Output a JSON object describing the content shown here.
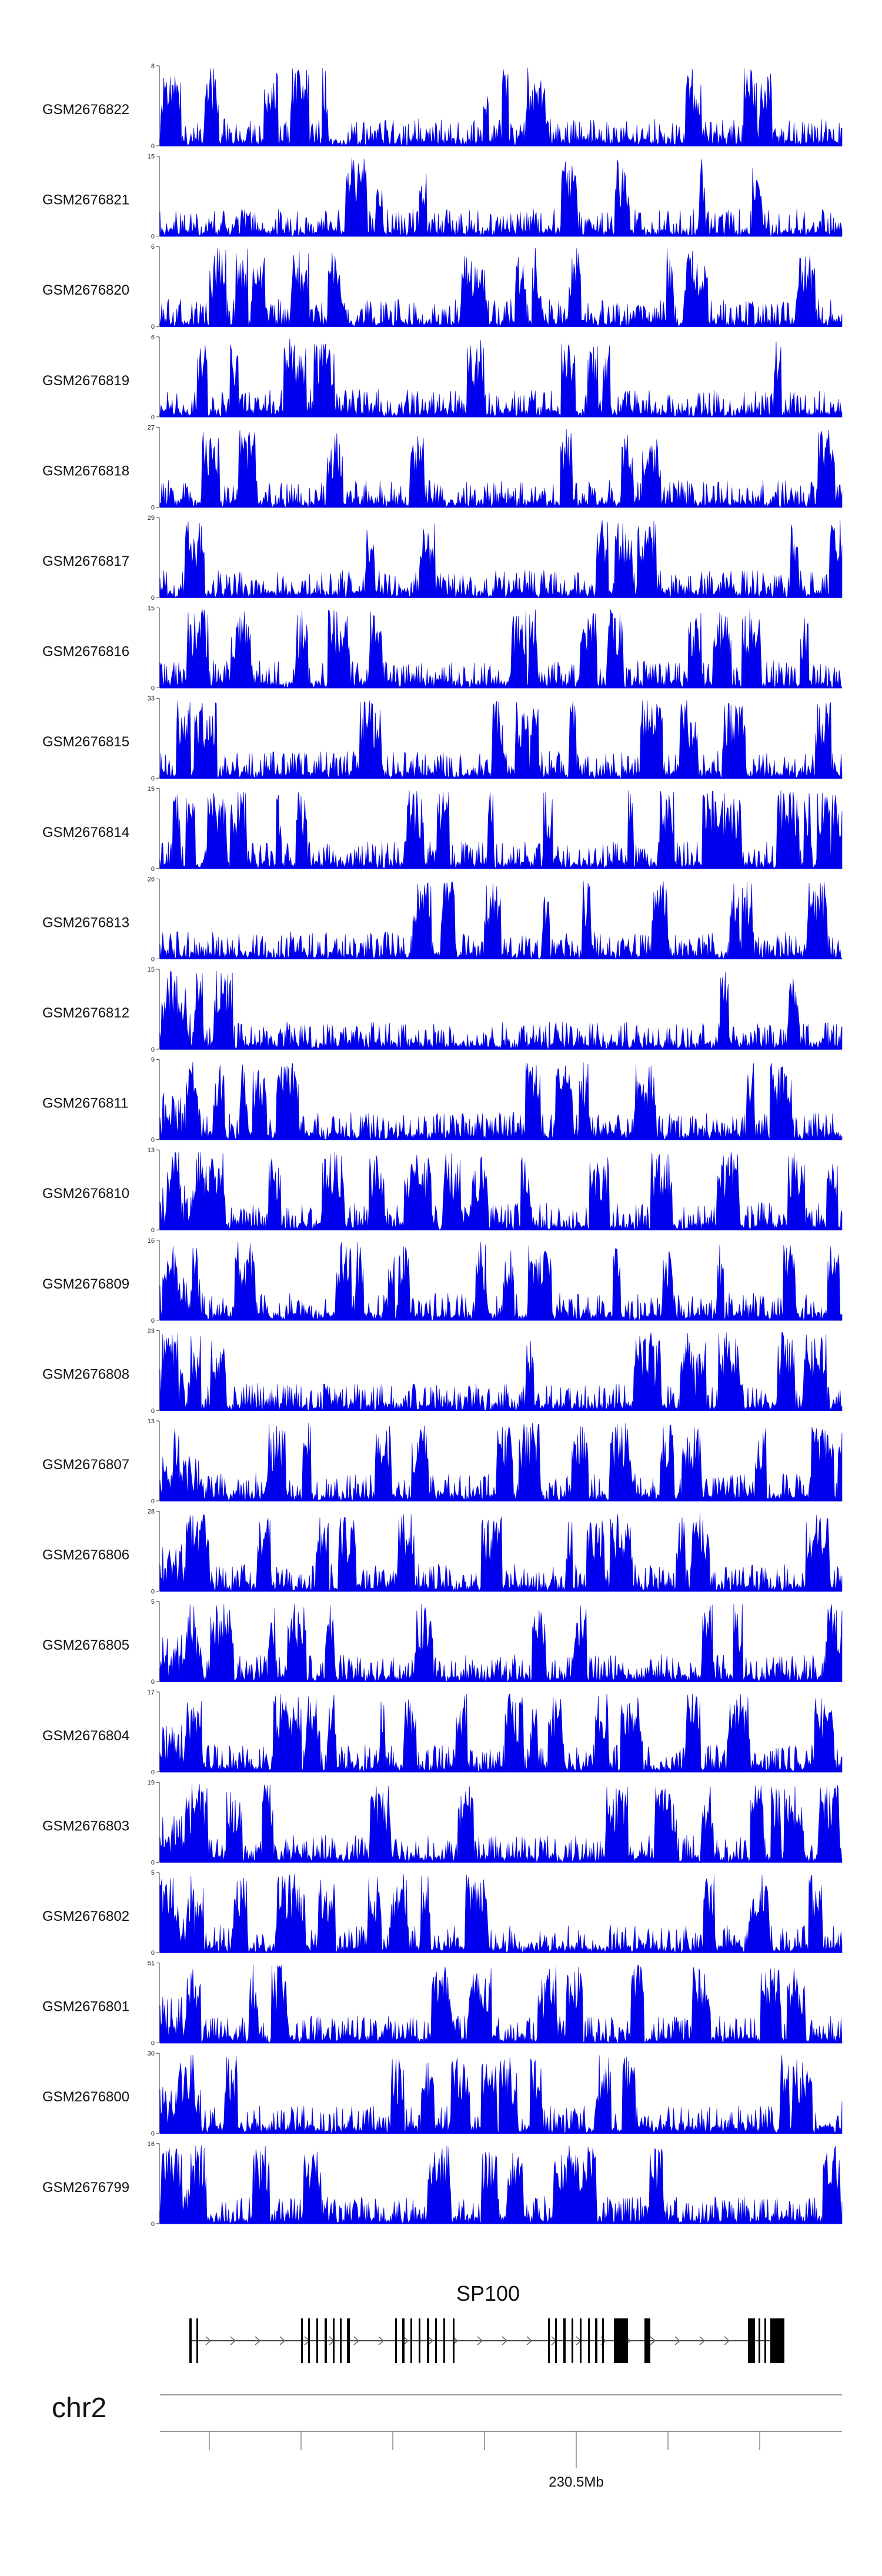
{
  "chart_data": {
    "type": "area",
    "tracks": [
      {
        "name": "GSM2676822",
        "ymin": "0",
        "ymax": "8"
      },
      {
        "name": "GSM2676821",
        "ymin": "0",
        "ymax": "15"
      },
      {
        "name": "GSM2676820",
        "ymin": "0",
        "ymax": "6"
      },
      {
        "name": "GSM2676819",
        "ymin": "0",
        "ymax": "6"
      },
      {
        "name": "GSM2676818",
        "ymin": "0",
        "ymax": "27"
      },
      {
        "name": "GSM2676817",
        "ymin": "0",
        "ymax": "29"
      },
      {
        "name": "GSM2676816",
        "ymin": "0",
        "ymax": "15"
      },
      {
        "name": "GSM2676815",
        "ymin": "0",
        "ymax": "33"
      },
      {
        "name": "GSM2676814",
        "ymin": "0",
        "ymax": "15"
      },
      {
        "name": "GSM2676813",
        "ymin": "0",
        "ymax": "26"
      },
      {
        "name": "GSM2676812",
        "ymin": "0",
        "ymax": "15"
      },
      {
        "name": "GSM2676811",
        "ymin": "0",
        "ymax": "9"
      },
      {
        "name": "GSM2676810",
        "ymin": "0",
        "ymax": "13"
      },
      {
        "name": "GSM2676809",
        "ymin": "0",
        "ymax": "16"
      },
      {
        "name": "GSM2676808",
        "ymin": "0",
        "ymax": "23"
      },
      {
        "name": "GSM2676807",
        "ymin": "0",
        "ymax": "13"
      },
      {
        "name": "GSM2676806",
        "ymin": "0",
        "ymax": "28"
      },
      {
        "name": "GSM2676805",
        "ymin": "0",
        "ymax": "5"
      },
      {
        "name": "GSM2676804",
        "ymin": "0",
        "ymax": "17"
      },
      {
        "name": "GSM2676803",
        "ymin": "0",
        "ymax": "19"
      },
      {
        "name": "GSM2676802",
        "ymin": "0",
        "ymax": "5"
      },
      {
        "name": "GSM2676801",
        "ymin": "0",
        "ymax": "51"
      },
      {
        "name": "GSM2676800",
        "ymin": "0",
        "ymax": "30"
      },
      {
        "name": "GSM2676799",
        "ymin": "0",
        "ymax": "16"
      }
    ],
    "gene": {
      "name": "SP100",
      "strand": "+"
    },
    "chromosome": "chr2",
    "axis_label": "230.5Mb",
    "color": "#0000ee"
  }
}
